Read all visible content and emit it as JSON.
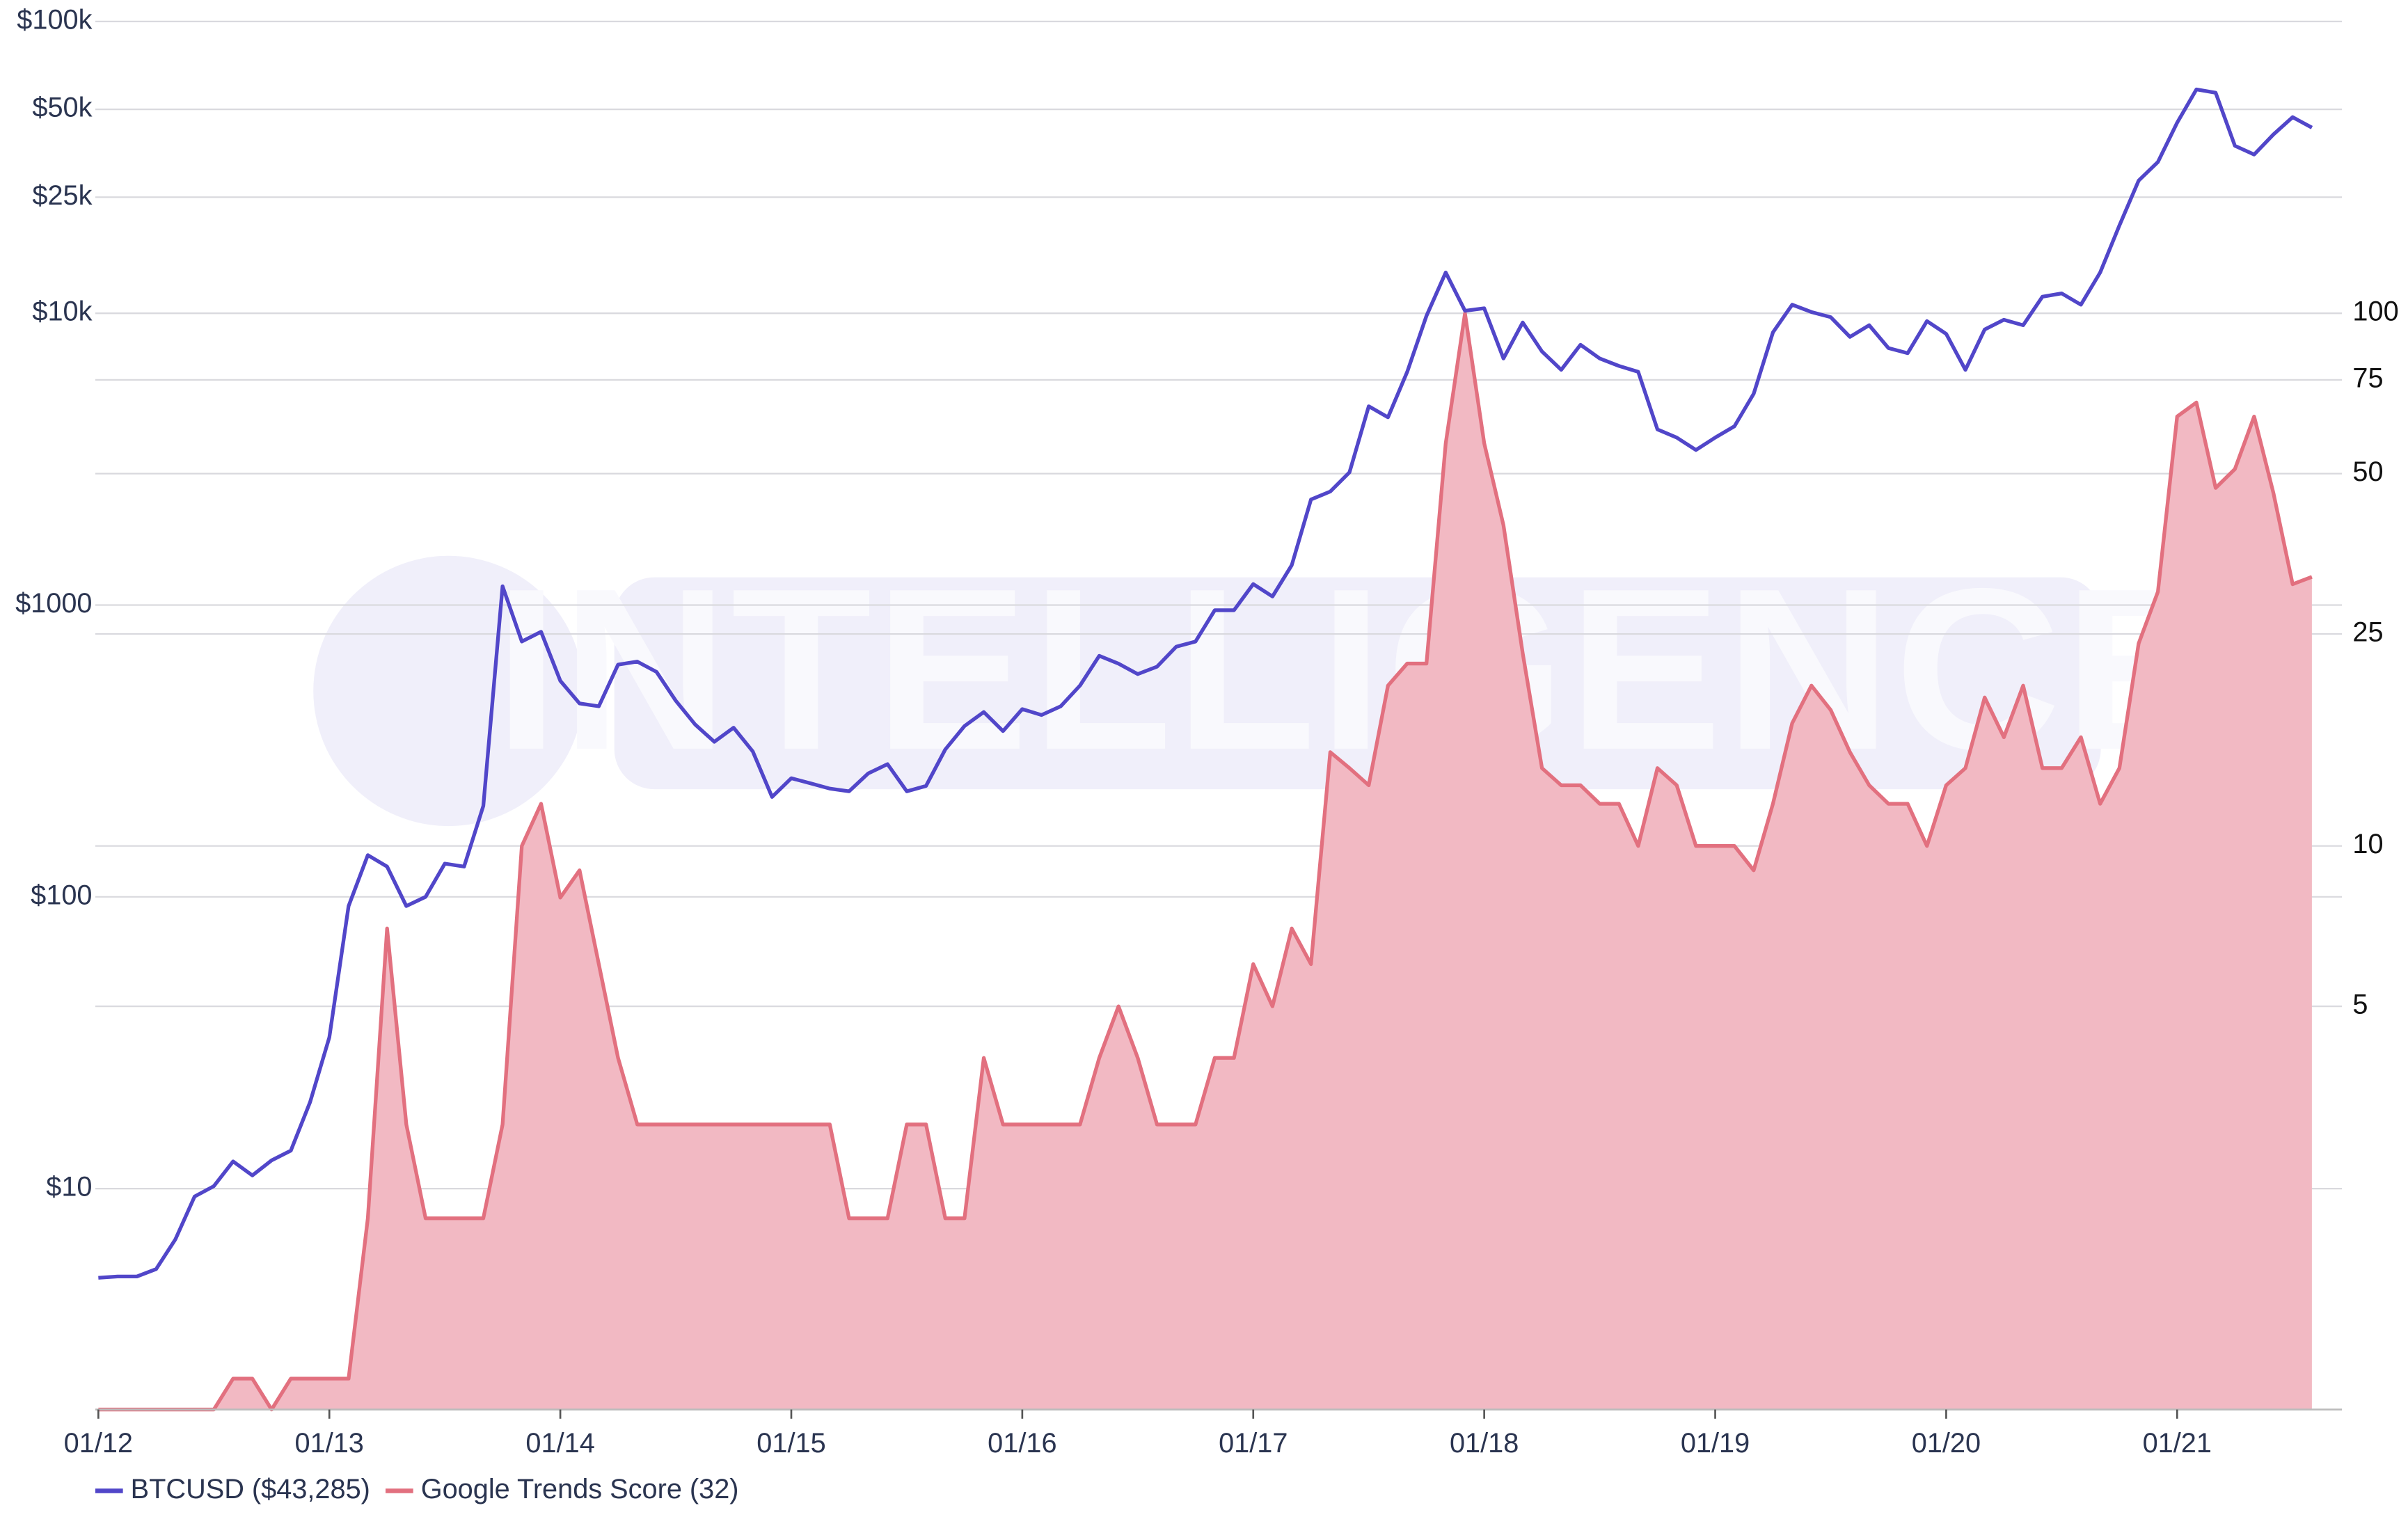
{
  "chart_data": {
    "type": "line",
    "watermark": "INTELLIGENCE",
    "x": [
      "01/12",
      "02/12",
      "03/12",
      "04/12",
      "05/12",
      "06/12",
      "07/12",
      "08/12",
      "09/12",
      "10/12",
      "11/12",
      "12/12",
      "01/13",
      "02/13",
      "03/13",
      "04/13",
      "05/13",
      "06/13",
      "07/13",
      "08/13",
      "09/13",
      "10/13",
      "11/13",
      "12/13",
      "01/14",
      "02/14",
      "03/14",
      "04/14",
      "05/14",
      "06/14",
      "07/14",
      "08/14",
      "09/14",
      "10/14",
      "11/14",
      "12/14",
      "01/15",
      "02/15",
      "03/15",
      "04/15",
      "05/15",
      "06/15",
      "07/15",
      "08/15",
      "09/15",
      "10/15",
      "11/15",
      "12/15",
      "01/16",
      "02/16",
      "03/16",
      "04/16",
      "05/16",
      "06/16",
      "07/16",
      "08/16",
      "09/16",
      "10/16",
      "11/16",
      "12/16",
      "01/17",
      "02/17",
      "03/17",
      "04/17",
      "05/17",
      "06/17",
      "07/17",
      "08/17",
      "09/17",
      "10/17",
      "11/17",
      "12/17",
      "01/18",
      "02/18",
      "03/18",
      "04/18",
      "05/18",
      "06/18",
      "07/18",
      "08/18",
      "09/18",
      "10/18",
      "11/18",
      "12/18",
      "01/19",
      "02/19",
      "03/19",
      "04/19",
      "05/19",
      "06/19",
      "07/19",
      "08/19",
      "09/19",
      "10/19",
      "11/19",
      "12/19",
      "01/20",
      "02/20",
      "03/20",
      "04/20",
      "05/20",
      "06/20",
      "07/20",
      "08/20",
      "09/20",
      "10/20",
      "11/20",
      "12/20",
      "01/21",
      "02/21",
      "03/21",
      "04/21",
      "05/21",
      "06/21",
      "07/21",
      "08/21"
    ],
    "xlim": [
      "01/12",
      "09/21"
    ],
    "xticks": [
      "01/12",
      "01/13",
      "01/14",
      "01/15",
      "01/16",
      "01/17",
      "01/18",
      "01/19",
      "01/20",
      "01/21"
    ],
    "ylim": [
      1.75,
      100000
    ],
    "yticks": [
      {
        "value": 10,
        "label": "$10"
      },
      {
        "value": 100,
        "label": "$100"
      },
      {
        "value": 1000,
        "label": "$1000"
      },
      {
        "value": 10000,
        "label": "$10k"
      },
      {
        "value": 25000,
        "label": "$25k"
      },
      {
        "value": 50000,
        "label": "$50k"
      },
      {
        "value": 100000,
        "label": "$100k"
      }
    ],
    "y2lim": [
      0.875,
      353
    ],
    "y2ticks": [
      5,
      10,
      25,
      50,
      75,
      100
    ],
    "log_scale": true,
    "grid": true,
    "legend": "bottom-left",
    "series": [
      {
        "name": "BTCUSD ($43,285)",
        "color": "#5146c9",
        "axis": "y",
        "values": [
          4.95,
          5.0,
          5.0,
          5.3,
          6.7,
          9.4,
          10.2,
          12.4,
          11.1,
          12.5,
          13.5,
          19.8,
          33,
          93,
          139,
          127,
          93,
          100,
          130,
          127,
          205,
          1160,
          750,
          810,
          550,
          460,
          450,
          625,
          640,
          590,
          470,
          390,
          340,
          380,
          315,
          220,
          255,
          245,
          235,
          230,
          265,
          285,
          230,
          240,
          320,
          385,
          430,
          370,
          440,
          420,
          450,
          530,
          670,
          630,
          580,
          615,
          720,
          750,
          960,
          960,
          1180,
          1070,
          1370,
          2300,
          2450,
          2850,
          4800,
          4400,
          6300,
          9800,
          13800,
          10200,
          10400,
          7000,
          9300,
          7400,
          6400,
          7800,
          7000,
          6600,
          6300,
          4000,
          3750,
          3400,
          3750,
          4100,
          5300,
          8600,
          10700,
          10100,
          9700,
          8300,
          9100,
          7600,
          7300,
          9400,
          8500,
          6400,
          8800,
          9500,
          9100,
          11400,
          11700,
          10700,
          13800,
          20000,
          28500,
          33000,
          45000,
          58500,
          57000,
          37500,
          35000,
          41000,
          47000,
          43285
        ]
      },
      {
        "name": "Google Trends Score (32)",
        "color": "#e2707f",
        "fill": "#f2b9c3",
        "axis": "y2",
        "values": [
          0,
          0,
          0,
          0,
          0,
          0,
          0,
          1,
          1,
          0,
          1,
          1,
          1,
          1,
          2,
          7,
          3,
          2,
          2,
          2,
          2,
          3,
          10,
          12,
          8,
          9,
          6,
          4,
          3,
          3,
          3,
          3,
          3,
          3,
          3,
          3,
          3,
          3,
          3,
          2,
          2,
          2,
          3,
          3,
          2,
          2,
          4,
          3,
          3,
          3,
          3,
          3,
          4,
          5,
          4,
          3,
          3,
          3,
          4,
          4,
          6,
          5,
          7,
          6,
          15,
          14,
          13,
          20,
          22,
          22,
          57,
          100,
          57,
          40,
          23,
          14,
          13,
          13,
          12,
          12,
          10,
          14,
          13,
          10,
          10,
          10,
          9,
          12,
          17,
          20,
          18,
          15,
          13,
          12,
          12,
          10,
          13,
          14,
          19,
          16,
          20,
          14,
          14,
          16,
          12,
          14,
          24,
          30,
          64,
          68,
          47,
          51,
          64,
          46,
          31,
          32
        ]
      }
    ]
  }
}
